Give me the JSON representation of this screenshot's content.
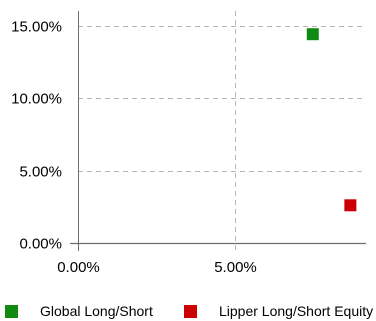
{
  "chart_data": {
    "type": "scatter",
    "xlim": [
      0,
      9.2
    ],
    "ylim": [
      0,
      16
    ],
    "x_ticks": [
      {
        "value": 0,
        "label": "0.00%"
      },
      {
        "value": 5,
        "label": "5.00%"
      }
    ],
    "y_ticks": [
      {
        "value": 0,
        "label": "0.00%"
      },
      {
        "value": 5,
        "label": "5.00%"
      },
      {
        "value": 10,
        "label": "10.00%"
      },
      {
        "value": 15,
        "label": "15.00%"
      }
    ],
    "grid": true,
    "legend_position": "bottom",
    "series": [
      {
        "name": "Global Long/Short",
        "color": "#118a11",
        "points": [
          {
            "x": 7.5,
            "y": 14.4
          }
        ]
      },
      {
        "name": "Lipper Long/Short Equity",
        "color": "#cc0000",
        "points": [
          {
            "x": 8.7,
            "y": 2.6
          }
        ]
      }
    ]
  }
}
